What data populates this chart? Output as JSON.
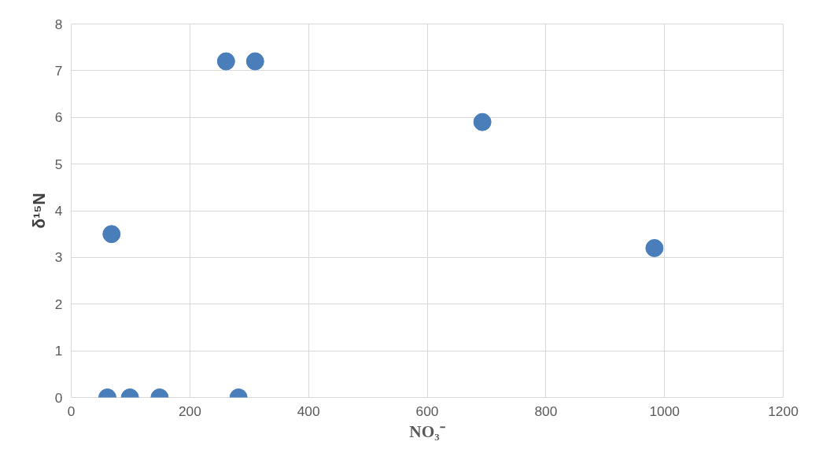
{
  "chart_data": {
    "type": "scatter",
    "xlabel": "NO₃⁻",
    "ylabel": "δ¹⁵N",
    "x": [
      61,
      99,
      149,
      282,
      68,
      261,
      310,
      693,
      983
    ],
    "series": [
      {
        "color": "#4a7ebb",
        "values": [
          0,
          0,
          0,
          0,
          3.5,
          7.2,
          7.2,
          5.9,
          3.2
        ]
      }
    ],
    "xlim": [
      0,
      1200
    ],
    "ylim": [
      0,
      8
    ],
    "xticks": [
      0,
      200,
      400,
      600,
      800,
      1000,
      1200
    ],
    "yticks": [
      0,
      1,
      2,
      3,
      4,
      5,
      6,
      7,
      8
    ],
    "grid": true,
    "marker": "circle"
  }
}
